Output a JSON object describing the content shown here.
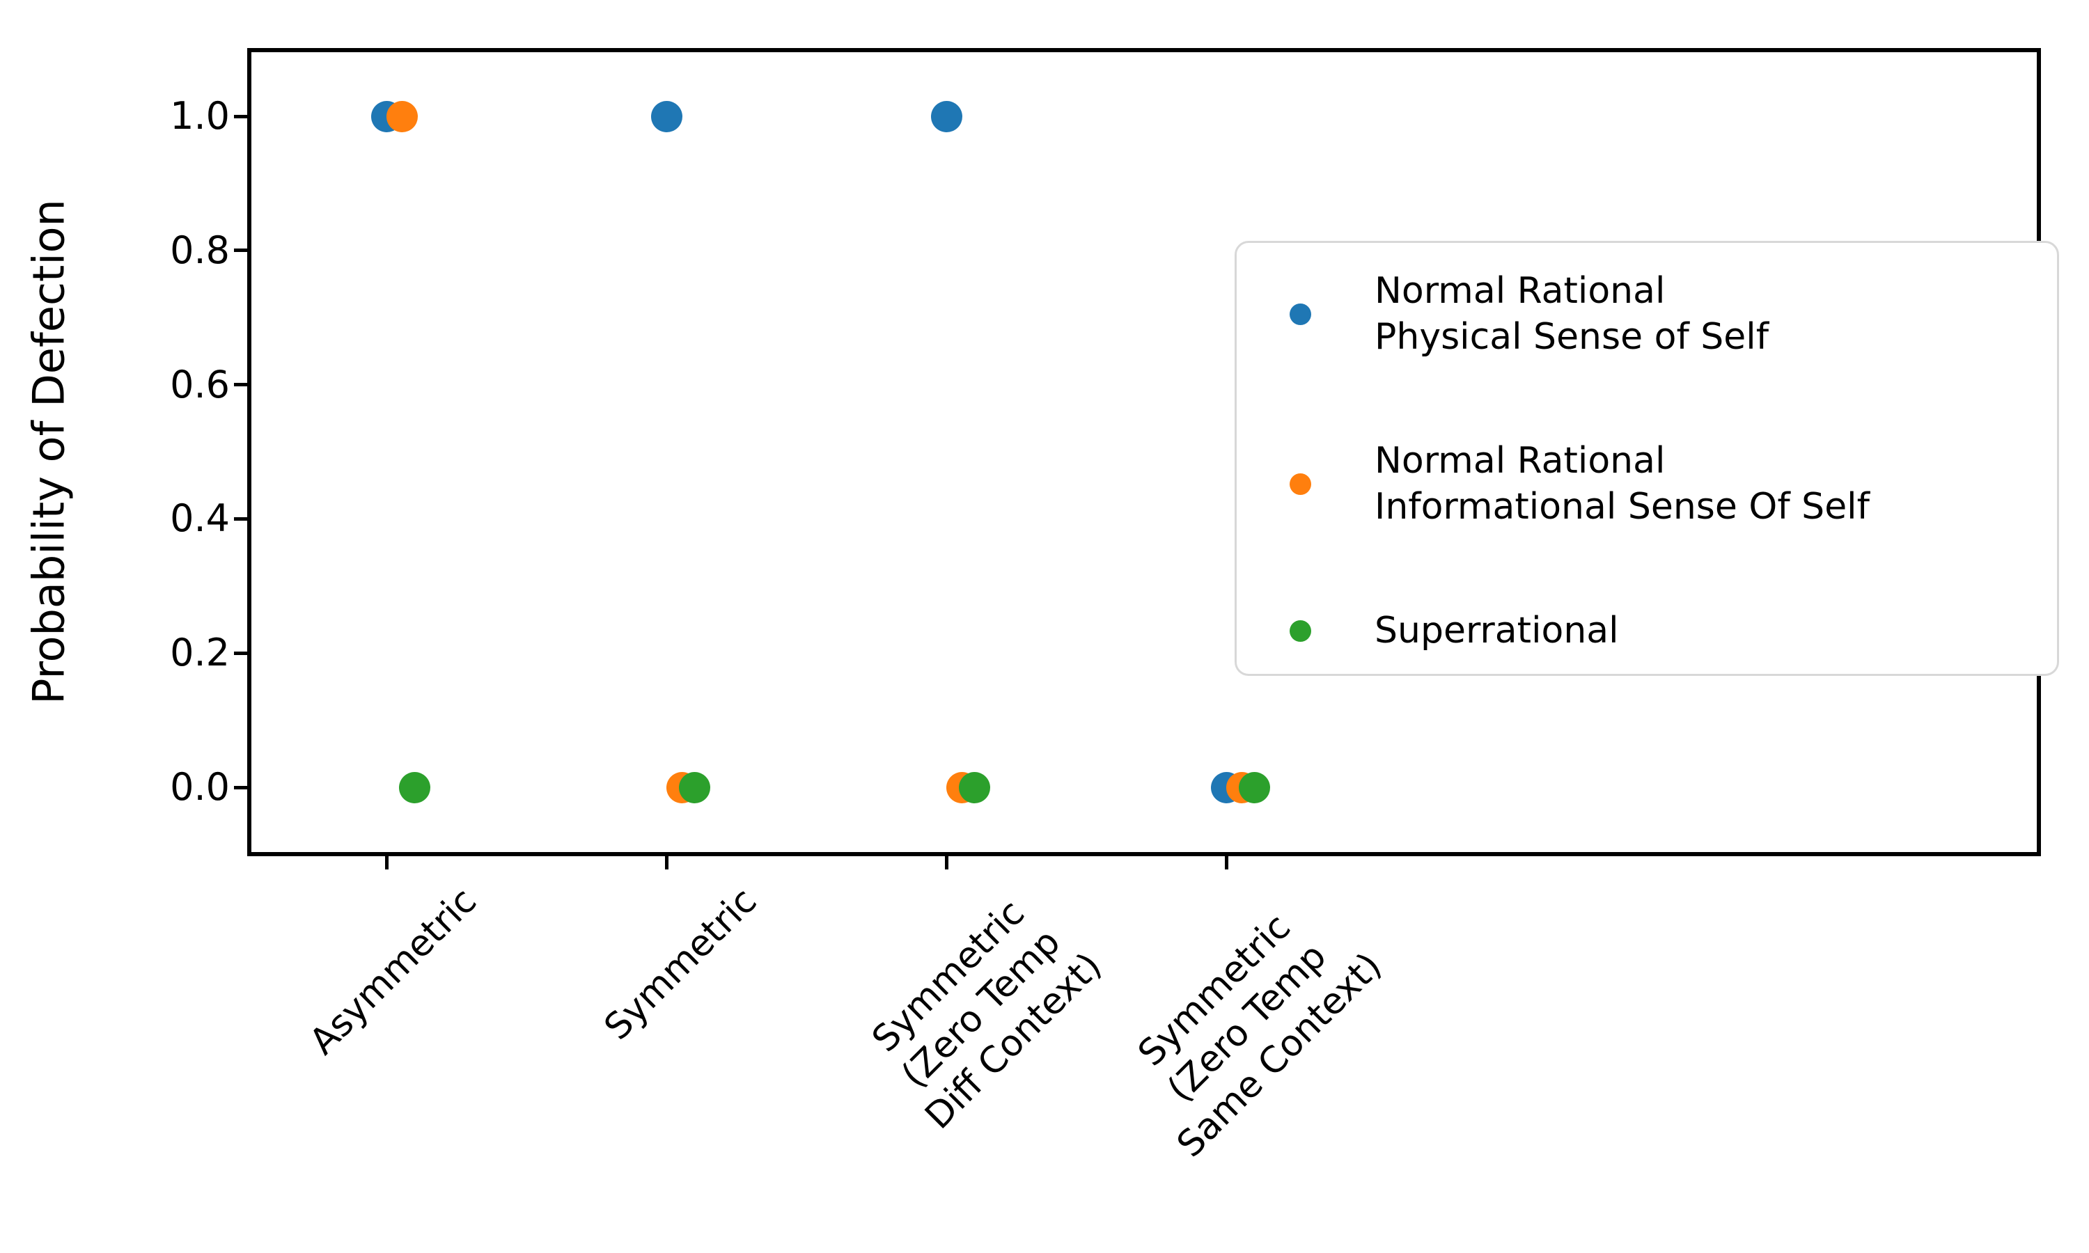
{
  "chart_data": {
    "type": "scatter",
    "title": "",
    "ylabel": "Probability of Defection",
    "xlabel": "",
    "yticks": [
      "0.0",
      "0.2",
      "0.4",
      "0.6",
      "0.8",
      "1.0"
    ],
    "ylim": [
      -0.1,
      1.1
    ],
    "grid": false,
    "legend_position": "center-right-inside",
    "categories": [
      [
        "Asymmetric"
      ],
      [
        "Symmetric"
      ],
      [
        "Symmetric",
        "(Zero Temp",
        "Diff Context)"
      ],
      [
        "Symmetric",
        "(Zero Temp",
        "Same Context)"
      ]
    ],
    "series": [
      {
        "name": "Normal Rational Physical Sense of Self",
        "legend_lines": [
          "Normal Rational",
          "Physical Sense of Self"
        ],
        "color": "#1f77b4",
        "values": [
          1.0,
          1.0,
          1.0,
          0.0
        ]
      },
      {
        "name": "Normal Rational Informational Sense Of Self",
        "legend_lines": [
          "Normal Rational",
          "Informational Sense Of Self"
        ],
        "color": "#ff7f0e",
        "values": [
          1.0,
          0.0,
          0.0,
          0.0
        ]
      },
      {
        "name": "Superrational",
        "legend_lines": [
          "Superrational"
        ],
        "color": "#2ca02c",
        "values": [
          0.0,
          0.0,
          0.0,
          0.0
        ]
      }
    ]
  }
}
